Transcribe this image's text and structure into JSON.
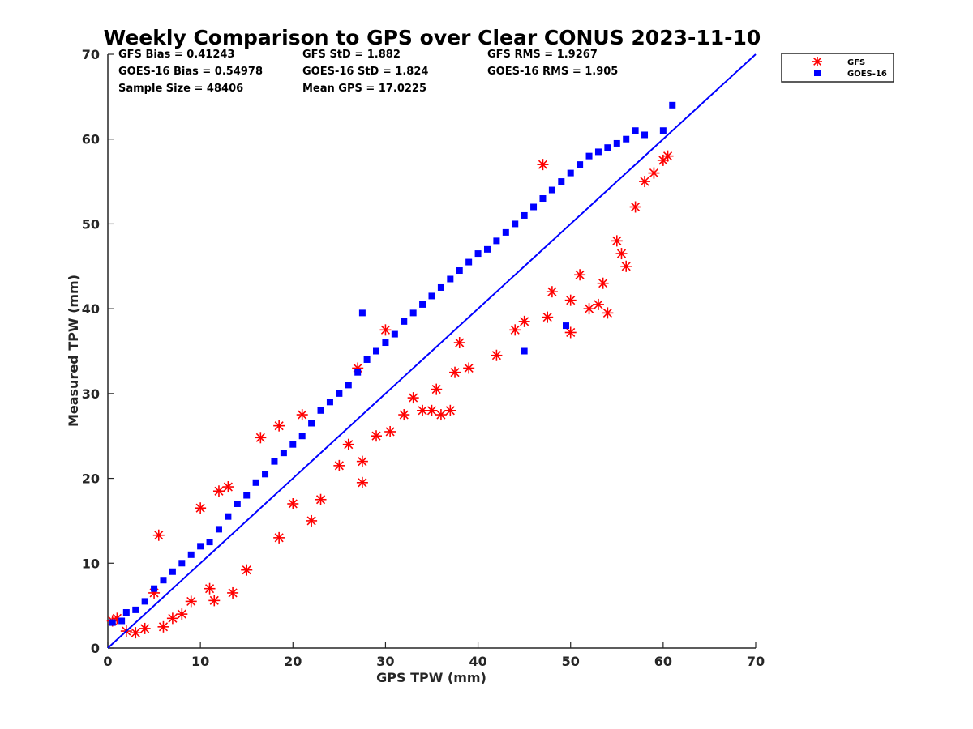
{
  "chart_data": {
    "type": "scatter",
    "title": "Weekly Comparison to GPS over Clear CONUS 2023-11-10",
    "xlabel": "GPS TPW (mm)",
    "ylabel": "Measured TPW (mm)",
    "xlim": [
      0,
      70
    ],
    "ylim": [
      0,
      70
    ],
    "xticks": [
      "0",
      "10",
      "20",
      "30",
      "40",
      "50",
      "60",
      "70"
    ],
    "yticks": [
      "0",
      "10",
      "20",
      "30",
      "40",
      "50",
      "60",
      "70"
    ],
    "grid": false,
    "legend_position": "outside-top-right",
    "stats": [
      "GFS Bias = 0.41243",
      "GFS StD = 1.882",
      "GFS RMS = 1.9267",
      "GOES-16 Bias = 0.54978",
      "GOES-16 StD = 1.824",
      "GOES-16 RMS = 1.905",
      "Sample Size = 48406",
      "Mean GPS = 17.0225"
    ],
    "reference_line": {
      "x": [
        0,
        70
      ],
      "y": [
        0,
        70
      ],
      "color": "#0000ff"
    },
    "series": [
      {
        "name": "GFS",
        "marker": "asterisk",
        "color": "#ff0000",
        "points": [
          [
            0.5,
            3.2
          ],
          [
            1,
            3.5
          ],
          [
            2,
            2.0
          ],
          [
            3,
            1.8
          ],
          [
            4,
            2.3
          ],
          [
            5,
            6.5
          ],
          [
            5.5,
            13.3
          ],
          [
            6,
            2.5
          ],
          [
            7,
            3.5
          ],
          [
            8,
            4.0
          ],
          [
            9,
            5.5
          ],
          [
            10,
            16.5
          ],
          [
            11,
            7.0
          ],
          [
            11.5,
            5.6
          ],
          [
            12,
            18.5
          ],
          [
            13,
            19.0
          ],
          [
            13.5,
            6.5
          ],
          [
            15,
            9.2
          ],
          [
            16.5,
            24.8
          ],
          [
            18.5,
            26.2
          ],
          [
            18.5,
            13.0
          ],
          [
            20,
            17.0
          ],
          [
            21,
            27.5
          ],
          [
            22,
            15.0
          ],
          [
            23,
            17.5
          ],
          [
            25,
            21.5
          ],
          [
            26,
            24.0
          ],
          [
            27,
            33.0
          ],
          [
            27.5,
            19.5
          ],
          [
            27.5,
            22.0
          ],
          [
            29,
            25.0
          ],
          [
            30,
            37.5
          ],
          [
            30.5,
            25.5
          ],
          [
            32,
            27.5
          ],
          [
            33,
            29.5
          ],
          [
            34,
            28.0
          ],
          [
            35,
            28.0
          ],
          [
            35.5,
            30.5
          ],
          [
            36,
            27.5
          ],
          [
            37,
            28.0
          ],
          [
            37.5,
            32.5
          ],
          [
            38,
            36.0
          ],
          [
            39,
            33.0
          ],
          [
            42,
            34.5
          ],
          [
            44,
            37.5
          ],
          [
            45,
            38.5
          ],
          [
            47,
            57.0
          ],
          [
            47.5,
            39.0
          ],
          [
            48,
            42.0
          ],
          [
            50,
            41.0
          ],
          [
            50,
            37.2
          ],
          [
            51,
            44.0
          ],
          [
            52,
            40.0
          ],
          [
            53,
            40.5
          ],
          [
            53.5,
            43.0
          ],
          [
            54,
            39.5
          ],
          [
            55,
            48.0
          ],
          [
            55.5,
            46.5
          ],
          [
            56,
            45.0
          ],
          [
            57,
            52.0
          ],
          [
            58,
            55.0
          ],
          [
            59,
            56.0
          ],
          [
            60,
            57.5
          ],
          [
            60.5,
            58.0
          ]
        ]
      },
      {
        "name": "GOES-16",
        "marker": "square",
        "color": "#0000ff",
        "points": [
          [
            0.5,
            3.0
          ],
          [
            1.5,
            3.2
          ],
          [
            2,
            4.2
          ],
          [
            3,
            4.5
          ],
          [
            4,
            5.5
          ],
          [
            5,
            7.0
          ],
          [
            6,
            8.0
          ],
          [
            7,
            9.0
          ],
          [
            8,
            10.0
          ],
          [
            9,
            11.0
          ],
          [
            10,
            12.0
          ],
          [
            11,
            12.5
          ],
          [
            12,
            14.0
          ],
          [
            13,
            15.5
          ],
          [
            14,
            17.0
          ],
          [
            15,
            18.0
          ],
          [
            16,
            19.5
          ],
          [
            17,
            20.5
          ],
          [
            18,
            22.0
          ],
          [
            19,
            23.0
          ],
          [
            20,
            24.0
          ],
          [
            21,
            25.0
          ],
          [
            22,
            26.5
          ],
          [
            23,
            28.0
          ],
          [
            24,
            29.0
          ],
          [
            25,
            30.0
          ],
          [
            26,
            31.0
          ],
          [
            27,
            32.5
          ],
          [
            28,
            34.0
          ],
          [
            29,
            35.0
          ],
          [
            30,
            36.0
          ],
          [
            31,
            37.0
          ],
          [
            32,
            38.5
          ],
          [
            33,
            39.5
          ],
          [
            34,
            40.5
          ],
          [
            35,
            41.5
          ],
          [
            36,
            42.5
          ],
          [
            37,
            43.5
          ],
          [
            38,
            44.5
          ],
          [
            39,
            45.5
          ],
          [
            40,
            46.5
          ],
          [
            41,
            47.0
          ],
          [
            42,
            48.0
          ],
          [
            43,
            49.0
          ],
          [
            44,
            50.0
          ],
          [
            45,
            51.0
          ],
          [
            46,
            52.0
          ],
          [
            47,
            53.0
          ],
          [
            48,
            54.0
          ],
          [
            49,
            55.0
          ],
          [
            50,
            56.0
          ],
          [
            51,
            57.0
          ],
          [
            52,
            58.0
          ],
          [
            53,
            58.5
          ],
          [
            54,
            59.0
          ],
          [
            55,
            59.5
          ],
          [
            56,
            60.0
          ],
          [
            57,
            61.0
          ],
          [
            58,
            60.5
          ],
          [
            60,
            61.0
          ],
          [
            61,
            64.0
          ],
          [
            27.5,
            39.5
          ],
          [
            45,
            35.0
          ],
          [
            49.5,
            38.0
          ]
        ]
      }
    ]
  }
}
